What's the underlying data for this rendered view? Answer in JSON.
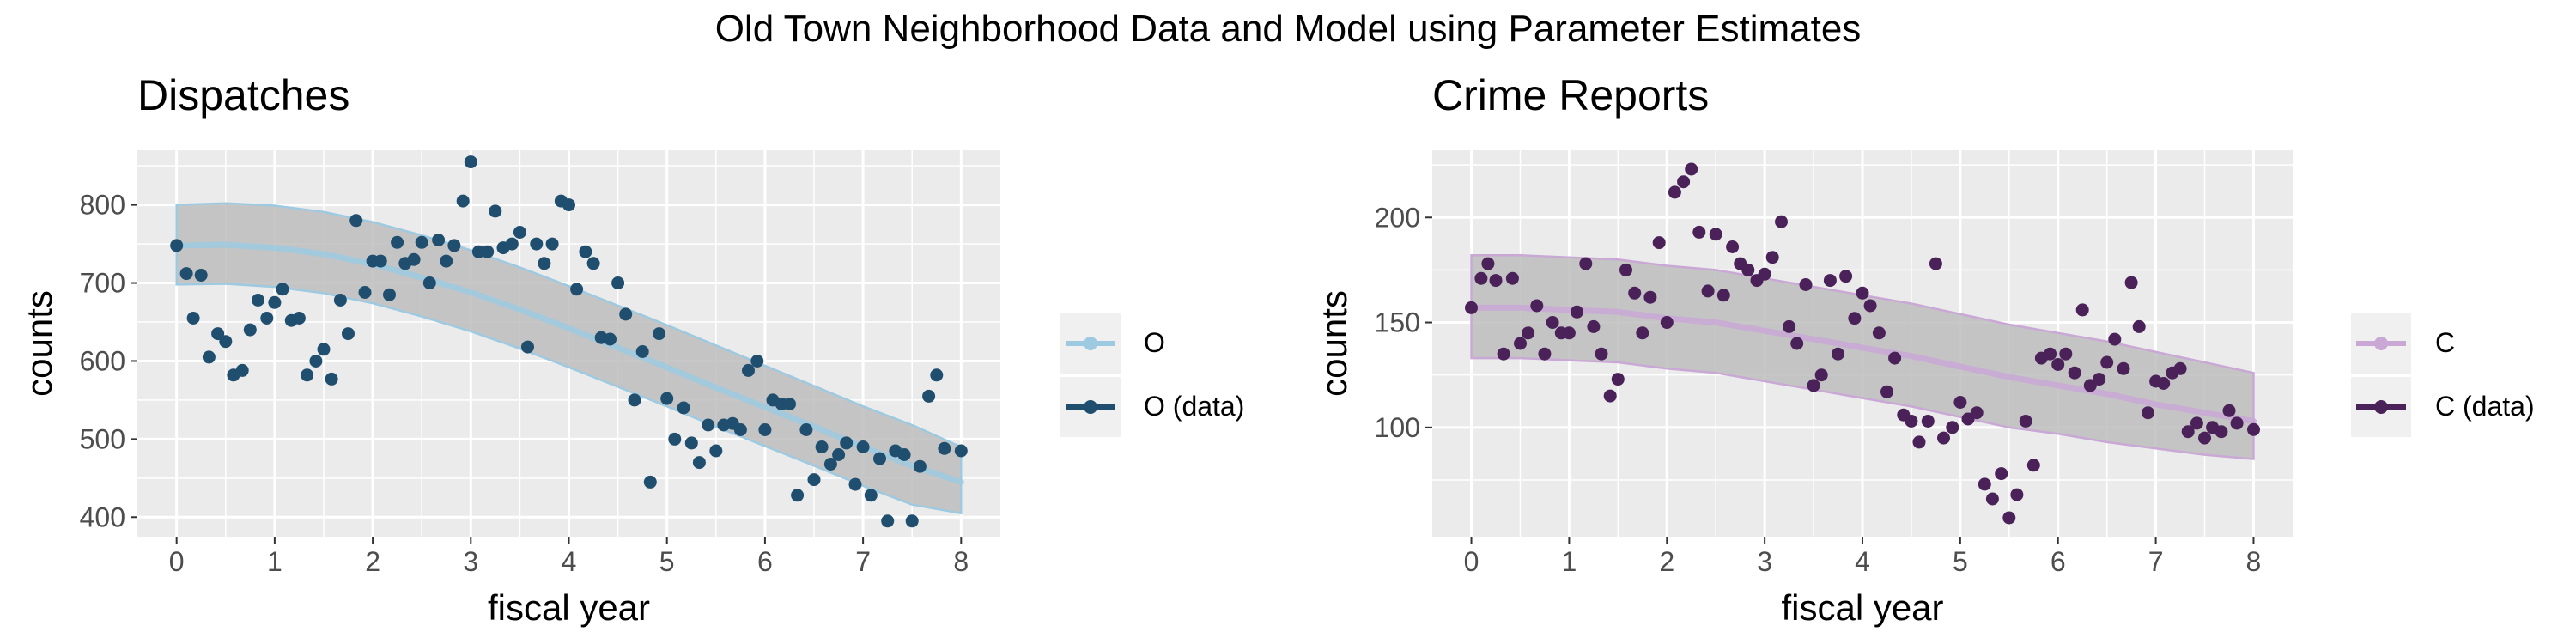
{
  "figure": {
    "title": "Old Town Neighborhood Data and Model using Parameter Estimates"
  },
  "panels": [
    {
      "title": "Dispatches",
      "legend": {
        "model_label": "O",
        "data_label": "O (data)"
      }
    },
    {
      "title": "Crime Reports",
      "legend": {
        "model_label": "C",
        "data_label": "C (data)"
      }
    }
  ],
  "chart_data": [
    {
      "type": "scatter",
      "title": "Dispatches",
      "xlabel": "fiscal year",
      "ylabel": "counts",
      "xlim": [
        -0.4,
        8.4
      ],
      "ylim": [
        375,
        870
      ],
      "xticks": [
        0,
        1,
        2,
        3,
        4,
        5,
        6,
        7,
        8
      ],
      "yticks": [
        400,
        500,
        600,
        700,
        800
      ],
      "grid": true,
      "legend_position": "right",
      "colors": {
        "model": "#9ecae1",
        "data": "#1f4e6e",
        "ribbon": "#bdbdbd"
      },
      "model": {
        "name": "O",
        "x": [
          0,
          0.5,
          1,
          1.5,
          2,
          2.5,
          3,
          3.5,
          4,
          4.5,
          5,
          5.5,
          6,
          6.5,
          7,
          7.5,
          8
        ],
        "y": [
          748,
          749,
          745,
          737,
          724,
          707,
          688,
          666,
          642,
          617,
          592,
          566,
          541,
          516,
          490,
          466,
          445
        ],
        "lower": [
          698,
          699,
          695,
          687,
          674,
          657,
          638,
          616,
          592,
          567,
          542,
          516,
          491,
          466,
          440,
          416,
          405
        ],
        "upper": [
          800,
          802,
          799,
          791,
          778,
          761,
          742,
          720,
          696,
          671,
          646,
          620,
          594,
          568,
          542,
          518,
          490
        ]
      },
      "data": {
        "name": "O (data)",
        "points": [
          [
            0,
            748
          ],
          [
            0.1,
            712
          ],
          [
            0.17,
            655
          ],
          [
            0.25,
            710
          ],
          [
            0.33,
            605
          ],
          [
            0.42,
            635
          ],
          [
            0.5,
            625
          ],
          [
            0.58,
            582
          ],
          [
            0.67,
            588
          ],
          [
            0.75,
            640
          ],
          [
            0.83,
            678
          ],
          [
            0.92,
            655
          ],
          [
            1.0,
            675
          ],
          [
            1.08,
            692
          ],
          [
            1.17,
            652
          ],
          [
            1.25,
            655
          ],
          [
            1.33,
            582
          ],
          [
            1.42,
            600
          ],
          [
            1.5,
            615
          ],
          [
            1.58,
            577
          ],
          [
            1.67,
            678
          ],
          [
            1.75,
            635
          ],
          [
            1.83,
            780
          ],
          [
            1.92,
            688
          ],
          [
            2.0,
            728
          ],
          [
            2.08,
            728
          ],
          [
            2.17,
            685
          ],
          [
            2.25,
            752
          ],
          [
            2.33,
            725
          ],
          [
            2.42,
            730
          ],
          [
            2.5,
            752
          ],
          [
            2.58,
            700
          ],
          [
            2.67,
            755
          ],
          [
            2.75,
            728
          ],
          [
            2.83,
            748
          ],
          [
            2.92,
            805
          ],
          [
            3.0,
            855
          ],
          [
            3.08,
            740
          ],
          [
            3.17,
            740
          ],
          [
            3.25,
            792
          ],
          [
            3.33,
            745
          ],
          [
            3.42,
            750
          ],
          [
            3.5,
            765
          ],
          [
            3.58,
            618
          ],
          [
            3.67,
            750
          ],
          [
            3.75,
            725
          ],
          [
            3.83,
            750
          ],
          [
            3.92,
            805
          ],
          [
            4.0,
            800
          ],
          [
            4.08,
            692
          ],
          [
            4.17,
            740
          ],
          [
            4.25,
            725
          ],
          [
            4.33,
            630
          ],
          [
            4.42,
            628
          ],
          [
            4.5,
            700
          ],
          [
            4.58,
            660
          ],
          [
            4.67,
            550
          ],
          [
            4.75,
            612
          ],
          [
            4.83,
            445
          ],
          [
            4.92,
            635
          ],
          [
            5.0,
            552
          ],
          [
            5.08,
            500
          ],
          [
            5.17,
            540
          ],
          [
            5.25,
            495
          ],
          [
            5.33,
            470
          ],
          [
            5.42,
            518
          ],
          [
            5.5,
            485
          ],
          [
            5.58,
            518
          ],
          [
            5.67,
            520
          ],
          [
            5.75,
            512
          ],
          [
            5.83,
            588
          ],
          [
            5.92,
            600
          ],
          [
            6.0,
            512
          ],
          [
            6.08,
            550
          ],
          [
            6.17,
            545
          ],
          [
            6.25,
            545
          ],
          [
            6.33,
            428
          ],
          [
            6.42,
            512
          ],
          [
            6.5,
            448
          ],
          [
            6.58,
            490
          ],
          [
            6.67,
            468
          ],
          [
            6.75,
            480
          ],
          [
            6.83,
            495
          ],
          [
            6.92,
            442
          ],
          [
            7.0,
            490
          ],
          [
            7.08,
            428
          ],
          [
            7.17,
            475
          ],
          [
            7.25,
            395
          ],
          [
            7.33,
            485
          ],
          [
            7.42,
            480
          ],
          [
            7.5,
            395
          ],
          [
            7.58,
            465
          ],
          [
            7.67,
            555
          ],
          [
            7.75,
            582
          ],
          [
            7.83,
            488
          ],
          [
            8.0,
            485
          ]
        ]
      }
    },
    {
      "type": "scatter",
      "title": "Crime Reports",
      "xlabel": "fiscal year",
      "ylabel": "counts",
      "xlim": [
        -0.4,
        8.4
      ],
      "ylim": [
        48,
        232
      ],
      "xticks": [
        0,
        1,
        2,
        3,
        4,
        5,
        6,
        7,
        8
      ],
      "yticks": [
        100,
        150,
        200
      ],
      "grid": true,
      "legend_position": "right",
      "colors": {
        "model": "#c9a8d6",
        "data": "#4a2158",
        "ribbon": "#bdbdbd"
      },
      "model": {
        "name": "C",
        "x": [
          0,
          0.5,
          1,
          1.5,
          2,
          2.5,
          3,
          3.5,
          4,
          4.5,
          5,
          5.5,
          6,
          6.5,
          7,
          7.5,
          8
        ],
        "y": [
          157,
          157,
          156,
          155,
          152,
          150,
          146,
          142,
          138,
          134,
          129,
          124,
          120,
          116,
          111,
          107,
          103
        ],
        "lower": [
          133,
          133,
          132,
          131,
          128,
          126,
          122,
          118,
          114,
          110,
          105,
          100,
          97,
          93,
          90,
          87,
          85
        ],
        "upper": [
          182,
          182,
          181,
          180,
          177,
          175,
          171,
          167,
          163,
          159,
          154,
          149,
          145,
          141,
          136,
          131,
          126
        ]
      },
      "data": {
        "name": "C (data)",
        "points": [
          [
            0,
            157
          ],
          [
            0.1,
            171
          ],
          [
            0.17,
            178
          ],
          [
            0.25,
            170
          ],
          [
            0.33,
            135
          ],
          [
            0.42,
            171
          ],
          [
            0.5,
            140
          ],
          [
            0.58,
            145
          ],
          [
            0.67,
            158
          ],
          [
            0.75,
            135
          ],
          [
            0.83,
            150
          ],
          [
            0.92,
            145
          ],
          [
            1.0,
            145
          ],
          [
            1.08,
            155
          ],
          [
            1.17,
            178
          ],
          [
            1.25,
            148
          ],
          [
            1.33,
            135
          ],
          [
            1.42,
            115
          ],
          [
            1.5,
            123
          ],
          [
            1.58,
            175
          ],
          [
            1.67,
            164
          ],
          [
            1.75,
            145
          ],
          [
            1.83,
            162
          ],
          [
            1.92,
            188
          ],
          [
            2.0,
            150
          ],
          [
            2.08,
            212
          ],
          [
            2.17,
            217
          ],
          [
            2.25,
            223
          ],
          [
            2.33,
            193
          ],
          [
            2.42,
            165
          ],
          [
            2.5,
            192
          ],
          [
            2.58,
            163
          ],
          [
            2.67,
            186
          ],
          [
            2.75,
            178
          ],
          [
            2.83,
            175
          ],
          [
            2.92,
            170
          ],
          [
            3.0,
            173
          ],
          [
            3.08,
            181
          ],
          [
            3.17,
            198
          ],
          [
            3.25,
            148
          ],
          [
            3.33,
            140
          ],
          [
            3.42,
            168
          ],
          [
            3.5,
            120
          ],
          [
            3.58,
            125
          ],
          [
            3.67,
            170
          ],
          [
            3.75,
            135
          ],
          [
            3.83,
            172
          ],
          [
            3.92,
            152
          ],
          [
            4.0,
            164
          ],
          [
            4.08,
            158
          ],
          [
            4.17,
            145
          ],
          [
            4.25,
            117
          ],
          [
            4.33,
            133
          ],
          [
            4.42,
            106
          ],
          [
            4.5,
            103
          ],
          [
            4.58,
            93
          ],
          [
            4.67,
            103
          ],
          [
            4.75,
            178
          ],
          [
            4.83,
            95
          ],
          [
            4.92,
            100
          ],
          [
            5.0,
            112
          ],
          [
            5.08,
            104
          ],
          [
            5.17,
            107
          ],
          [
            5.25,
            73
          ],
          [
            5.33,
            66
          ],
          [
            5.42,
            78
          ],
          [
            5.5,
            57
          ],
          [
            5.58,
            68
          ],
          [
            5.67,
            103
          ],
          [
            5.75,
            82
          ],
          [
            5.83,
            133
          ],
          [
            5.92,
            135
          ],
          [
            6.0,
            130
          ],
          [
            6.08,
            135
          ],
          [
            6.17,
            126
          ],
          [
            6.25,
            156
          ],
          [
            6.33,
            120
          ],
          [
            6.42,
            123
          ],
          [
            6.5,
            131
          ],
          [
            6.58,
            142
          ],
          [
            6.67,
            128
          ],
          [
            6.75,
            169
          ],
          [
            6.83,
            148
          ],
          [
            6.92,
            107
          ],
          [
            7.0,
            122
          ],
          [
            7.08,
            121
          ],
          [
            7.17,
            126
          ],
          [
            7.25,
            128
          ],
          [
            7.33,
            98
          ],
          [
            7.42,
            102
          ],
          [
            7.5,
            95
          ],
          [
            7.58,
            100
          ],
          [
            7.67,
            98
          ],
          [
            7.75,
            108
          ],
          [
            7.83,
            102
          ],
          [
            8.0,
            99
          ]
        ]
      }
    }
  ]
}
